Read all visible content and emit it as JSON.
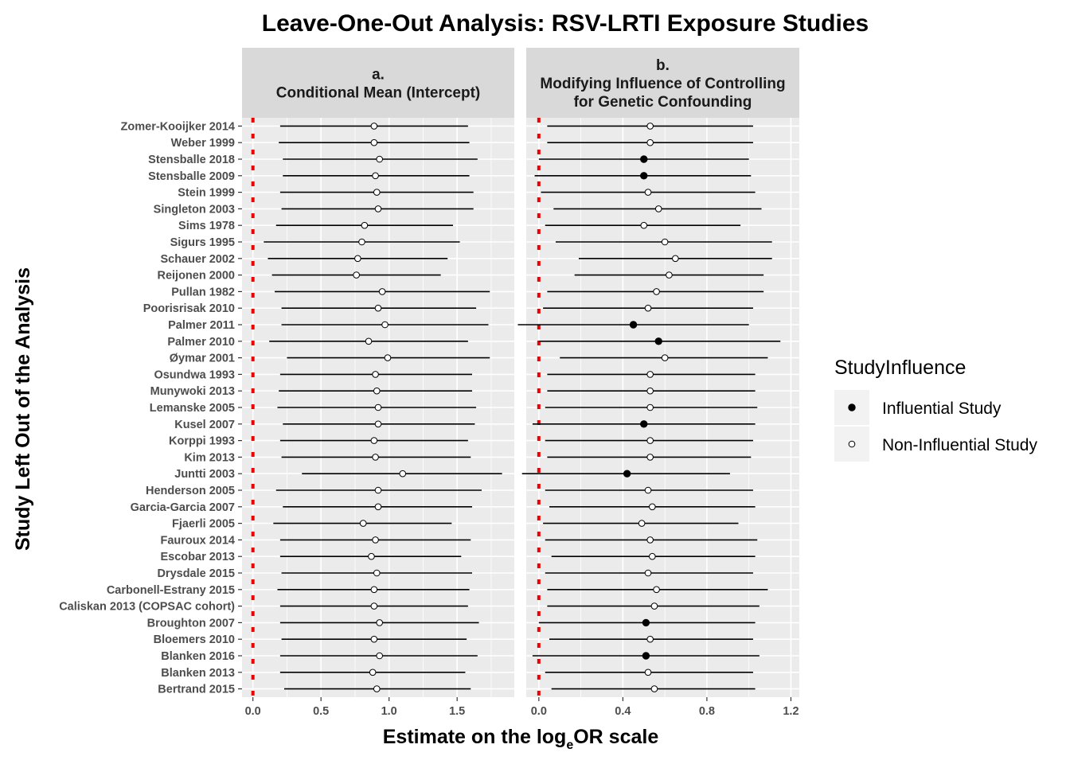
{
  "chart_data": {
    "type": "forest",
    "title": "Leave-One-Out Analysis: RSV-LRTI Exposure Studies",
    "xlabel_prefix": "Estimate on the log",
    "xlabel_subscript": "e",
    "xlabel_suffix": "OR scale",
    "ylabel": "Study Left Out of the Analysis",
    "reference_line": 0,
    "reference_line_color": "#ee0000",
    "legend": {
      "title": "StudyInfluence",
      "placement": "right",
      "entries": [
        {
          "label": "Influential Study",
          "filled": true
        },
        {
          "label": "Non-Influential Study",
          "filled": false
        }
      ]
    },
    "studies": [
      "Zomer-Kooijker 2014",
      "Weber 1999",
      "Stensballe 2018",
      "Stensballe 2009",
      "Stein 1999",
      "Singleton 2003",
      "Sims 1978",
      "Sigurs 1995",
      "Schauer 2002",
      "Reijonen 2000",
      "Pullan 1982",
      "Poorisrisak 2010",
      "Palmer 2011",
      "Palmer 2010",
      "Øymar 2001",
      "Osundwa 1993",
      "Munywoki 2013",
      "Lemanske 2005",
      "Kusel 2007",
      "Korppi 1993",
      "Kim 2013",
      "Juntti 2003",
      "Henderson 2005",
      "Garcia-Garcia 2007",
      "Fjaerli 2005",
      "Fauroux 2014",
      "Escobar 2013",
      "Drysdale 2015",
      "Carbonell-Estrany 2015",
      "Caliskan 2013 (COPSAC cohort)",
      "Broughton 2007",
      "Bloemers 2010",
      "Blanken 2016",
      "Blanken 2013",
      "Bertrand 2015"
    ],
    "panels": [
      {
        "label_line1": "a.",
        "label_line2": "Conditional Mean (Intercept)",
        "label_line3": "",
        "xlim": [
          -0.08,
          1.92
        ],
        "xticks": [
          0.0,
          0.5,
          1.0,
          1.5
        ],
        "xtick_labels": [
          "0.0",
          "0.5",
          "1.0",
          "1.5"
        ],
        "estimate": [
          0.89,
          0.89,
          0.93,
          0.9,
          0.91,
          0.92,
          0.82,
          0.8,
          0.77,
          0.76,
          0.95,
          0.92,
          0.97,
          0.85,
          0.99,
          0.9,
          0.91,
          0.92,
          0.92,
          0.89,
          0.9,
          1.1,
          0.92,
          0.92,
          0.81,
          0.9,
          0.87,
          0.91,
          0.89,
          0.89,
          0.93,
          0.89,
          0.93,
          0.88,
          0.91
        ],
        "lower": [
          0.2,
          0.19,
          0.22,
          0.22,
          0.2,
          0.21,
          0.17,
          0.08,
          0.11,
          0.14,
          0.16,
          0.21,
          0.21,
          0.12,
          0.25,
          0.2,
          0.19,
          0.18,
          0.22,
          0.2,
          0.21,
          0.36,
          0.17,
          0.22,
          0.15,
          0.2,
          0.2,
          0.21,
          0.18,
          0.2,
          0.2,
          0.21,
          0.2,
          0.2,
          0.23
        ],
        "upper": [
          1.58,
          1.59,
          1.65,
          1.59,
          1.62,
          1.62,
          1.47,
          1.52,
          1.43,
          1.38,
          1.74,
          1.64,
          1.73,
          1.58,
          1.74,
          1.61,
          1.61,
          1.64,
          1.63,
          1.58,
          1.6,
          1.83,
          1.68,
          1.61,
          1.46,
          1.6,
          1.53,
          1.61,
          1.59,
          1.58,
          1.66,
          1.57,
          1.65,
          1.56,
          1.6
        ],
        "influential": [
          false,
          false,
          false,
          false,
          false,
          false,
          false,
          false,
          false,
          false,
          false,
          false,
          false,
          false,
          false,
          false,
          false,
          false,
          false,
          false,
          false,
          false,
          false,
          false,
          false,
          false,
          false,
          false,
          false,
          false,
          false,
          false,
          false,
          false,
          false
        ]
      },
      {
        "label_line1": "b.",
        "label_line2": "Modifying Influence of Controlling",
        "label_line3": "for Genetic Confounding",
        "xlim": [
          -0.06,
          1.24
        ],
        "xticks": [
          0.0,
          0.4,
          0.8,
          1.2
        ],
        "xtick_labels": [
          "0.0",
          "0.4",
          "0.8",
          "1.2"
        ],
        "estimate": [
          0.53,
          0.53,
          0.5,
          0.5,
          0.52,
          0.57,
          0.5,
          0.6,
          0.65,
          0.62,
          0.56,
          0.52,
          0.45,
          0.57,
          0.6,
          0.53,
          0.53,
          0.53,
          0.5,
          0.53,
          0.53,
          0.42,
          0.52,
          0.54,
          0.49,
          0.53,
          0.54,
          0.52,
          0.56,
          0.55,
          0.51,
          0.53,
          0.51,
          0.52,
          0.55
        ],
        "lower": [
          0.04,
          0.04,
          0.0,
          -0.02,
          0.01,
          0.07,
          0.03,
          0.08,
          0.19,
          0.17,
          0.04,
          0.02,
          -0.1,
          0.0,
          0.1,
          0.04,
          0.04,
          0.03,
          -0.03,
          0.03,
          0.04,
          -0.08,
          0.03,
          0.05,
          0.02,
          0.03,
          0.06,
          0.03,
          0.04,
          0.04,
          0.0,
          0.05,
          -0.03,
          0.03,
          0.06
        ],
        "upper": [
          1.02,
          1.02,
          1.0,
          1.01,
          1.03,
          1.06,
          0.96,
          1.11,
          1.11,
          1.07,
          1.07,
          1.02,
          1.0,
          1.15,
          1.09,
          1.03,
          1.03,
          1.04,
          1.03,
          1.02,
          1.01,
          0.91,
          1.02,
          1.03,
          0.95,
          1.04,
          1.03,
          1.02,
          1.09,
          1.05,
          1.03,
          1.02,
          1.05,
          1.02,
          1.03
        ],
        "influential": [
          false,
          false,
          true,
          true,
          false,
          false,
          false,
          false,
          false,
          false,
          false,
          false,
          true,
          true,
          false,
          false,
          false,
          false,
          true,
          false,
          false,
          true,
          false,
          false,
          false,
          false,
          false,
          false,
          false,
          false,
          true,
          false,
          true,
          false,
          false
        ]
      }
    ]
  }
}
